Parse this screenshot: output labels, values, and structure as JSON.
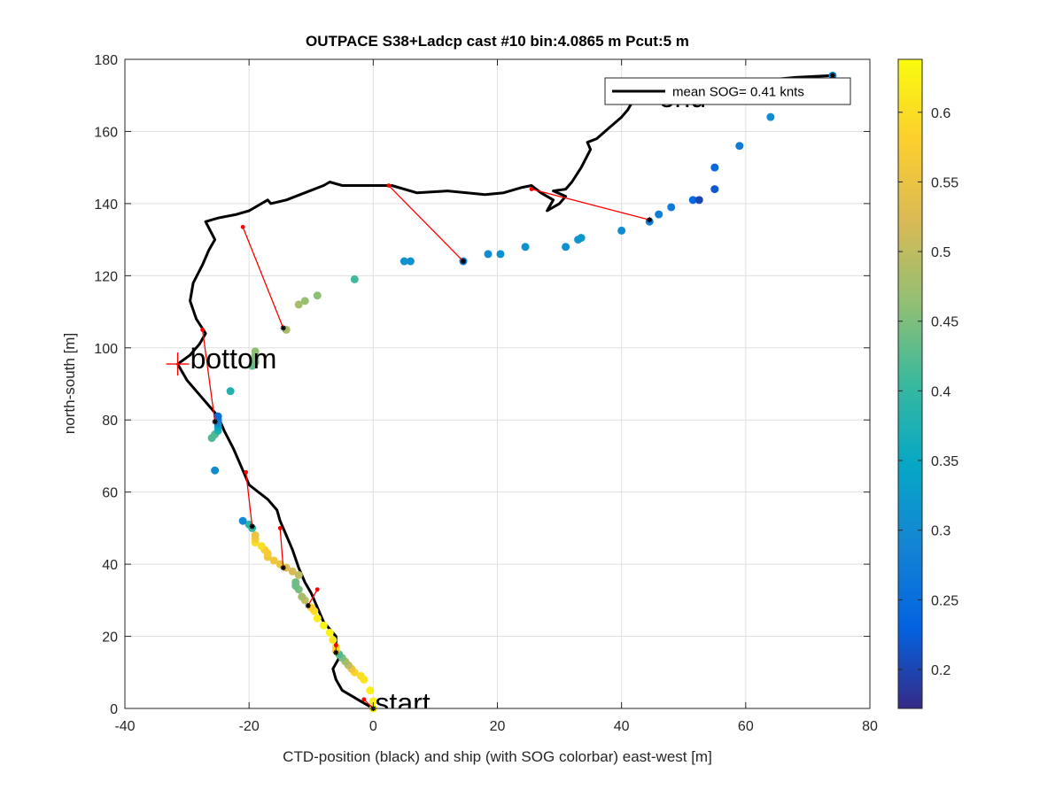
{
  "chart_data": {
    "type": "scatter",
    "title": "OUTPACE S38+Ladcp cast #10 bin:4.0865 m  Pcut:5 m",
    "xlabel": "CTD-position (black) and ship (with SOG colorbar) east-west [m]",
    "ylabel": "north-south [m]",
    "xlim": [
      -40,
      80
    ],
    "ylim": [
      0,
      180
    ],
    "xticks": [
      -40,
      -20,
      0,
      20,
      40,
      60,
      80
    ],
    "yticks": [
      0,
      20,
      40,
      60,
      80,
      100,
      120,
      140,
      160,
      180
    ],
    "xtick_labels": [
      "-40",
      "-20",
      "0",
      "20",
      "40",
      "60",
      "80"
    ],
    "ytick_labels": [
      "0",
      "20",
      "40",
      "60",
      "80",
      "100",
      "120",
      "140",
      "160",
      "180"
    ],
    "grid": true,
    "legend": {
      "placement": "top-right",
      "label": "mean SOG=  0.41 knts"
    },
    "colorbar": {
      "colormap": "parula",
      "range": [
        0.172,
        0.638
      ],
      "ticks": [
        0.2,
        0.25,
        0.3,
        0.35,
        0.4,
        0.45,
        0.5,
        0.55,
        0.6
      ],
      "tick_labels": [
        "0.2",
        "0.25",
        "0.3",
        "0.35",
        "0.4",
        "0.45",
        "0.5",
        "0.55",
        "0.6"
      ]
    },
    "annotations": [
      {
        "text": "start",
        "x": 0.3,
        "y": 0
      },
      {
        "text": "bottom",
        "x": -29.5,
        "y": 95.5
      },
      {
        "text": "end",
        "x": 46,
        "y": 168
      }
    ],
    "bottom_marker": {
      "x": -31.5,
      "y": 95.5
    },
    "ctd_track": {
      "name": "CTD position",
      "color": "#000000",
      "points": [
        [
          0,
          0
        ],
        [
          -2,
          2
        ],
        [
          -5,
          5
        ],
        [
          -6,
          8
        ],
        [
          -6.5,
          11
        ],
        [
          -5.5,
          14
        ],
        [
          -6,
          17
        ],
        [
          -6,
          20
        ],
        [
          -8,
          24
        ],
        [
          -9,
          28
        ],
        [
          -10,
          32
        ],
        [
          -11,
          35
        ],
        [
          -12,
          39
        ],
        [
          -13,
          44
        ],
        [
          -14,
          48
        ],
        [
          -15,
          52
        ],
        [
          -15.5,
          55
        ],
        [
          -17,
          58
        ],
        [
          -20,
          62
        ],
        [
          -21,
          66
        ],
        [
          -22.5,
          72
        ],
        [
          -24,
          77
        ],
        [
          -25,
          81
        ],
        [
          -26.5,
          84
        ],
        [
          -28,
          87
        ],
        [
          -30,
          91
        ],
        [
          -31.5,
          95.5
        ],
        [
          -29.5,
          98
        ],
        [
          -28,
          101
        ],
        [
          -27,
          104
        ],
        [
          -28.5,
          108
        ],
        [
          -29.5,
          113
        ],
        [
          -29,
          118
        ],
        [
          -27.5,
          123
        ],
        [
          -26.5,
          127
        ],
        [
          -25.5,
          130
        ],
        [
          -27,
          135
        ],
        [
          -25,
          136
        ],
        [
          -22,
          137
        ],
        [
          -20,
          138
        ],
        [
          -17,
          141
        ],
        [
          -16.5,
          140
        ],
        [
          -14,
          141
        ],
        [
          -11,
          143
        ],
        [
          -8,
          145
        ],
        [
          -7,
          146
        ],
        [
          -5,
          145
        ],
        [
          0,
          145
        ],
        [
          3,
          145
        ],
        [
          7,
          143
        ],
        [
          12,
          143.5
        ],
        [
          18,
          142.5
        ],
        [
          21,
          143
        ],
        [
          24,
          144.5
        ],
        [
          25.5,
          145
        ],
        [
          27,
          143
        ],
        [
          29,
          141
        ],
        [
          28,
          138
        ],
        [
          30,
          140
        ],
        [
          31,
          142
        ],
        [
          29,
          143.5
        ],
        [
          31,
          144
        ],
        [
          32,
          146
        ],
        [
          33.5,
          150
        ],
        [
          35,
          155
        ],
        [
          34.5,
          157
        ],
        [
          36,
          158
        ],
        [
          38,
          161
        ],
        [
          40,
          164
        ],
        [
          41,
          166
        ],
        [
          42,
          169
        ],
        [
          45,
          170
        ],
        [
          48,
          171
        ],
        [
          52,
          172
        ],
        [
          57,
          173
        ],
        [
          62,
          174
        ],
        [
          68,
          175
        ],
        [
          74,
          175.5
        ]
      ]
    },
    "ship_points": {
      "name": "ship (with SOG colorbar)",
      "points": [
        [
          0,
          0,
          0.63
        ],
        [
          0,
          2,
          0.62
        ],
        [
          -0.5,
          5,
          0.62
        ],
        [
          -1.5,
          8,
          0.61
        ],
        [
          -2,
          9,
          0.6
        ],
        [
          -3,
          10,
          0.59
        ],
        [
          -3.5,
          11,
          0.56
        ],
        [
          -4,
          12,
          0.5
        ],
        [
          -4.5,
          13,
          0.48
        ],
        [
          -5,
          14,
          0.45
        ],
        [
          -5.5,
          15,
          0.42
        ],
        [
          -6,
          16,
          0.58
        ],
        [
          -6,
          17,
          0.6
        ],
        [
          -6.5,
          19,
          0.61
        ],
        [
          -7,
          21,
          0.63
        ],
        [
          -8,
          23,
          0.63
        ],
        [
          -9,
          25,
          0.62
        ],
        [
          -9.5,
          27,
          0.6
        ],
        [
          -10,
          28,
          0.58
        ],
        [
          -11,
          30,
          0.5
        ],
        [
          -11.5,
          31,
          0.48
        ],
        [
          -12,
          33,
          0.45
        ],
        [
          -12.5,
          34,
          0.44
        ],
        [
          -12.5,
          35,
          0.44
        ],
        [
          -12,
          37,
          0.5
        ],
        [
          -13,
          38,
          0.52
        ],
        [
          -14,
          39,
          0.53
        ],
        [
          -15,
          40,
          0.55
        ],
        [
          -16,
          41,
          0.56
        ],
        [
          -17,
          42,
          0.56
        ],
        [
          -17,
          43,
          0.57
        ],
        [
          -17.5,
          44,
          0.57
        ],
        [
          -18,
          45,
          0.6
        ],
        [
          -19,
          46,
          0.6
        ],
        [
          -19,
          47,
          0.57
        ],
        [
          -19,
          48,
          0.55
        ],
        [
          -19.5,
          50,
          0.4
        ],
        [
          -20,
          51,
          0.39
        ],
        [
          -21,
          52,
          0.3
        ],
        [
          -25.5,
          66,
          0.3
        ],
        [
          -26,
          75,
          0.42
        ],
        [
          -25.5,
          76,
          0.42
        ],
        [
          -25,
          77,
          0.38
        ],
        [
          -25,
          78,
          0.35
        ],
        [
          -25,
          79,
          0.3
        ],
        [
          -25,
          80,
          0.28
        ],
        [
          -25,
          81,
          0.25
        ],
        [
          -23,
          88,
          0.38
        ],
        [
          -19.5,
          95,
          0.43
        ],
        [
          -19,
          96,
          0.44
        ],
        [
          -19,
          97,
          0.45
        ],
        [
          -19,
          98,
          0.45
        ],
        [
          -19,
          99,
          0.46
        ],
        [
          -14,
          105,
          0.48
        ],
        [
          -12,
          112,
          0.48
        ],
        [
          -11,
          113,
          0.47
        ],
        [
          -9,
          114.5,
          0.46
        ],
        [
          -3,
          119,
          0.41
        ],
        [
          5,
          124,
          0.31
        ],
        [
          6,
          124,
          0.31
        ],
        [
          14.5,
          124,
          0.28
        ],
        [
          18.5,
          126,
          0.3
        ],
        [
          20.5,
          126,
          0.31
        ],
        [
          24.5,
          128,
          0.31
        ],
        [
          31,
          128,
          0.31
        ],
        [
          33,
          130,
          0.32
        ],
        [
          33.5,
          130.5,
          0.32
        ],
        [
          40,
          132.5,
          0.3
        ],
        [
          44.5,
          135,
          0.28
        ],
        [
          46,
          137,
          0.28
        ],
        [
          48,
          139,
          0.27
        ],
        [
          51.5,
          141,
          0.24
        ],
        [
          52.5,
          141,
          0.2
        ],
        [
          55,
          144,
          0.22
        ],
        [
          55,
          150,
          0.24
        ],
        [
          59,
          156,
          0.27
        ],
        [
          64,
          164,
          0.3
        ],
        [
          74,
          175.5,
          0.3
        ]
      ]
    },
    "connectors": {
      "color": "#ff0000",
      "segments": [
        [
          [
            0,
            0
          ],
          [
            -1.5,
            2.5
          ]
        ],
        [
          [
            -6,
            15.5
          ],
          [
            -6,
            17.5
          ]
        ],
        [
          [
            -10.5,
            28.5
          ],
          [
            -9,
            33
          ]
        ],
        [
          [
            -14.5,
            39
          ],
          [
            -15,
            50
          ]
        ],
        [
          [
            -19.5,
            50.5
          ],
          [
            -20.5,
            65.5
          ]
        ],
        [
          [
            -25.5,
            79.5
          ],
          [
            -27.5,
            105
          ]
        ],
        [
          [
            -14.5,
            105.5
          ],
          [
            -21,
            133.5
          ]
        ],
        [
          [
            14.5,
            124
          ],
          [
            2.5,
            145
          ]
        ],
        [
          [
            44.5,
            135.5
          ],
          [
            25.5,
            144
          ]
        ]
      ]
    },
    "black_marks": [
      [
        0,
        0
      ],
      [
        -6,
        15.5
      ],
      [
        -10.5,
        28.5
      ],
      [
        -14.5,
        39
      ],
      [
        -19.5,
        50.5
      ],
      [
        -25.5,
        79.5
      ],
      [
        -14.5,
        105.5
      ],
      [
        14.5,
        124
      ],
      [
        44.5,
        135.5
      ],
      [
        74,
        175.5
      ]
    ]
  }
}
